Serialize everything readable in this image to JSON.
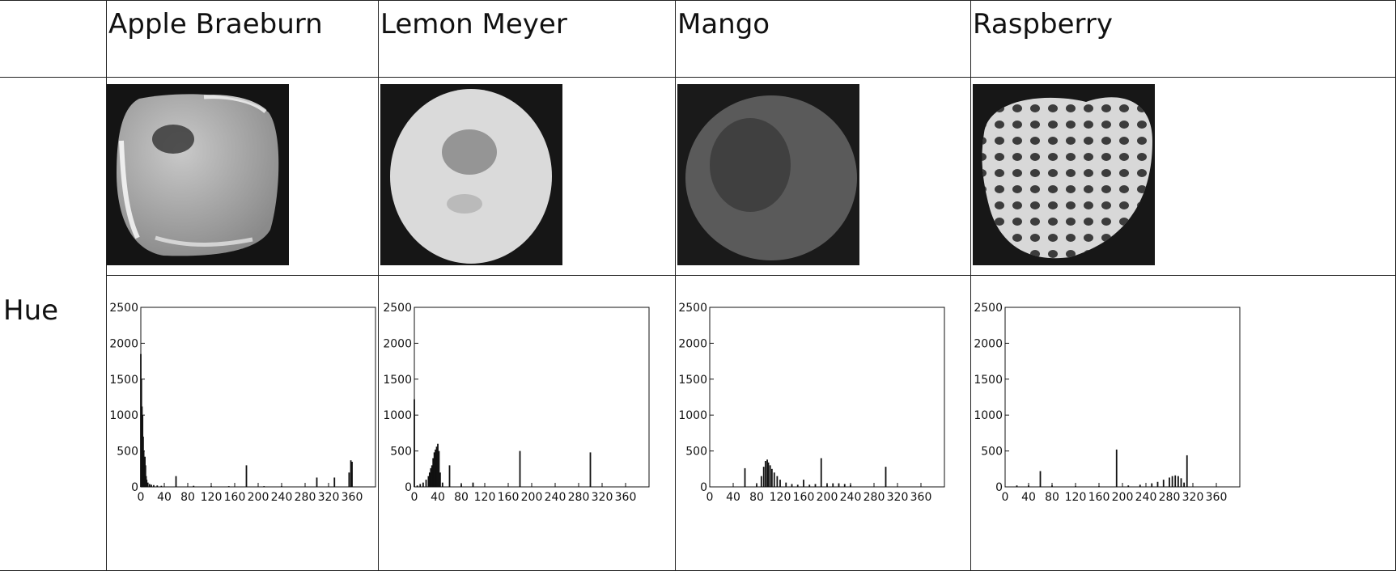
{
  "row_label": "Hue",
  "fruits": [
    {
      "name": "Apple Braeburn",
      "image": "apple-grayscale-image"
    },
    {
      "name": "Lemon Meyer",
      "image": "lemon-grayscale-image"
    },
    {
      "name": "Mango",
      "image": "mango-grayscale-image"
    },
    {
      "name": "Raspberry",
      "image": "raspberry-grayscale-image"
    }
  ],
  "chart_data": [
    {
      "type": "bar",
      "title": "",
      "xlabel": "",
      "ylabel": "",
      "xlim": [
        0,
        400
      ],
      "ylim": [
        0,
        2500
      ],
      "x_ticks": [
        0,
        40,
        80,
        120,
        160,
        200,
        240,
        280,
        320,
        360
      ],
      "y_ticks": [
        0,
        500,
        1000,
        1500,
        2000,
        2500
      ],
      "series": [
        {
          "x": [
            0,
            1,
            2,
            3,
            4,
            5,
            6,
            7,
            8,
            9,
            10,
            12,
            15,
            18,
            22,
            28,
            35,
            60,
            90,
            120,
            150,
            180,
            210,
            240,
            300,
            330,
            355,
            358,
            360
          ],
          "values": [
            1850,
            1500,
            1120,
            1000,
            700,
            500,
            400,
            420,
            300,
            150,
            100,
            60,
            40,
            30,
            25,
            20,
            15,
            150,
            15,
            10,
            10,
            300,
            10,
            10,
            130,
            130,
            200,
            370,
            350
          ]
        }
      ]
    },
    {
      "type": "bar",
      "title": "",
      "xlabel": "",
      "ylabel": "",
      "xlim": [
        0,
        400
      ],
      "ylim": [
        0,
        2500
      ],
      "x_ticks": [
        0,
        40,
        80,
        120,
        160,
        200,
        240,
        280,
        320,
        360
      ],
      "y_ticks": [
        0,
        500,
        1000,
        1500,
        2000,
        2500
      ],
      "series": [
        {
          "x": [
            0,
            5,
            10,
            15,
            20,
            24,
            26,
            28,
            30,
            32,
            34,
            36,
            38,
            40,
            42,
            44,
            48,
            60,
            80,
            100,
            180,
            300
          ],
          "values": [
            1220,
            20,
            40,
            60,
            100,
            150,
            200,
            260,
            300,
            400,
            480,
            520,
            560,
            600,
            500,
            200,
            60,
            300,
            40,
            60,
            500,
            480
          ]
        }
      ]
    },
    {
      "type": "bar",
      "title": "",
      "xlabel": "",
      "ylabel": "",
      "xlim": [
        0,
        400
      ],
      "ylim": [
        0,
        2500
      ],
      "x_ticks": [
        0,
        40,
        80,
        120,
        160,
        200,
        240,
        280,
        320,
        360
      ],
      "y_ticks": [
        0,
        500,
        1000,
        1500,
        2000,
        2500
      ],
      "series": [
        {
          "x": [
            60,
            80,
            88,
            92,
            95,
            98,
            100,
            103,
            106,
            110,
            115,
            120,
            130,
            140,
            150,
            160,
            170,
            180,
            190,
            200,
            210,
            220,
            230,
            240,
            300
          ],
          "values": [
            260,
            40,
            150,
            280,
            360,
            380,
            340,
            300,
            250,
            200,
            150,
            100,
            60,
            40,
            30,
            100,
            30,
            40,
            400,
            40,
            50,
            50,
            40,
            30,
            280
          ]
        }
      ]
    },
    {
      "type": "bar",
      "title": "",
      "xlabel": "",
      "ylabel": "",
      "xlim": [
        0,
        400
      ],
      "ylim": [
        0,
        2500
      ],
      "x_ticks": [
        0,
        40,
        80,
        120,
        160,
        200,
        240,
        280,
        320,
        360
      ],
      "y_ticks": [
        0,
        500,
        1000,
        1500,
        2000,
        2500
      ],
      "series": [
        {
          "x": [
            20,
            40,
            60,
            80,
            120,
            160,
            190,
            210,
            230,
            250,
            260,
            270,
            280,
            285,
            290,
            295,
            300,
            305,
            310
          ],
          "values": [
            20,
            20,
            220,
            20,
            10,
            10,
            520,
            20,
            30,
            50,
            70,
            100,
            130,
            150,
            160,
            150,
            120,
            60,
            440
          ]
        }
      ]
    }
  ]
}
